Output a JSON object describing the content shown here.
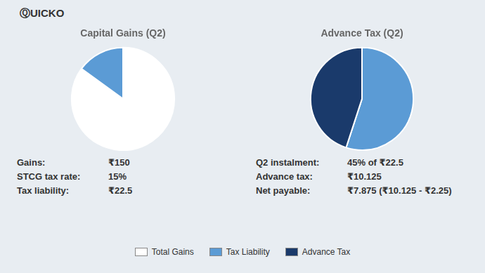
{
  "annotations": [
    "ⓆUICKO"
  ],
  "chart_data": [
    {
      "type": "pie",
      "title": "Capital Gains (Q2)",
      "categories": [
        "Total Gains",
        "Tax Liability"
      ],
      "values": [
        85,
        15
      ],
      "colors": [
        "#ffffff",
        "#5b9bd5"
      ],
      "legend": "bottom",
      "annotations": [
        [
          "Gains:",
          "₹150"
        ],
        [
          "STCG tax rate:",
          "15%"
        ],
        [
          "Tax liability:",
          "₹22.5"
        ]
      ]
    },
    {
      "type": "pie",
      "title": "Advance Tax (Q2)",
      "categories": [
        "Tax Liability",
        "Advance Tax"
      ],
      "values": [
        55,
        45
      ],
      "colors": [
        "#5b9bd5",
        "#1a3a6b"
      ],
      "legend": "bottom",
      "annotations": [
        [
          "Q2 instalment:",
          "45% of ₹22.5"
        ],
        [
          "Advance tax:",
          "₹10.125"
        ],
        [
          "Net payable:",
          "₹7.875 (₹10.125 - ₹2.25)"
        ]
      ]
    }
  ]
}
